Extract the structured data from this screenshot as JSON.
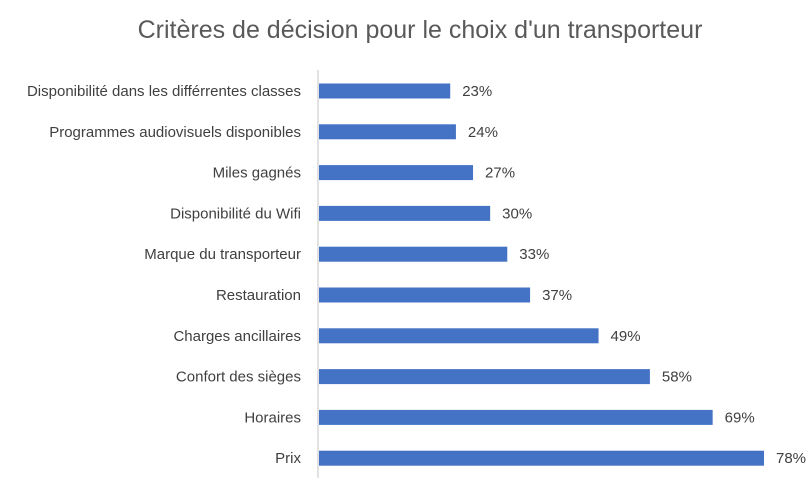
{
  "chart_data": {
    "type": "bar",
    "orientation": "horizontal",
    "title": "Critères de décision pour le choix d'un transporteur",
    "xlabel": "",
    "ylabel": "",
    "categories": [
      "Disponibilité dans les différrentes classes",
      "Programmes audiovisuels disponibles",
      "Miles gagnés",
      "Disponibilité du Wifi",
      "Marque du transporteur",
      "Restauration",
      "Charges ancillaires",
      "Confort des sièges",
      "Horaires",
      "Prix"
    ],
    "values": [
      23,
      24,
      27,
      30,
      33,
      37,
      49,
      58,
      69,
      78
    ],
    "value_labels": [
      "23%",
      "24%",
      "27%",
      "30%",
      "33%",
      "37%",
      "49%",
      "58%",
      "69%",
      "78%"
    ],
    "xlim": [
      0,
      78
    ],
    "grid": false,
    "legend": "none",
    "bar_color": "#4472C4"
  }
}
